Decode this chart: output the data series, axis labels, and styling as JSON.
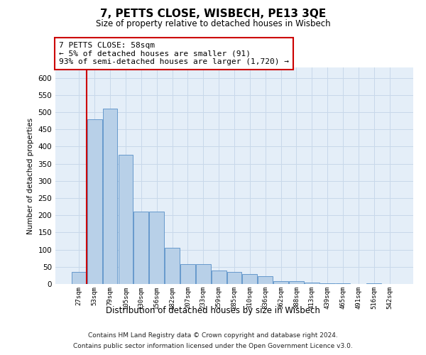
{
  "title": "7, PETTS CLOSE, WISBECH, PE13 3QE",
  "subtitle": "Size of property relative to detached houses in Wisbech",
  "xlabel": "Distribution of detached houses by size in Wisbech",
  "ylabel": "Number of detached properties",
  "categories": [
    "27sqm",
    "53sqm",
    "79sqm",
    "105sqm",
    "130sqm",
    "156sqm",
    "182sqm",
    "207sqm",
    "233sqm",
    "259sqm",
    "285sqm",
    "310sqm",
    "336sqm",
    "362sqm",
    "388sqm",
    "413sqm",
    "439sqm",
    "465sqm",
    "491sqm",
    "516sqm",
    "542sqm"
  ],
  "values": [
    35,
    480,
    510,
    375,
    210,
    210,
    105,
    57,
    57,
    40,
    35,
    28,
    22,
    8,
    8,
    5,
    2,
    2,
    1,
    2,
    1
  ],
  "bar_color": "#b8d0e8",
  "bar_edge_color": "#6699cc",
  "vline_x": 0.5,
  "vline_color": "#cc0000",
  "annotation_line1": "7 PETTS CLOSE: 58sqm",
  "annotation_line2": "← 5% of detached houses are smaller (91)",
  "annotation_line3": "93% of semi-detached houses are larger (1,720) →",
  "annotation_box_edge": "#cc0000",
  "grid_color": "#c8d8ea",
  "background_color": "#e4eef8",
  "ylim": [
    0,
    630
  ],
  "yticks": [
    0,
    50,
    100,
    150,
    200,
    250,
    300,
    350,
    400,
    450,
    500,
    550,
    600
  ],
  "footer_line1": "Contains HM Land Registry data © Crown copyright and database right 2024.",
  "footer_line2": "Contains public sector information licensed under the Open Government Licence v3.0."
}
